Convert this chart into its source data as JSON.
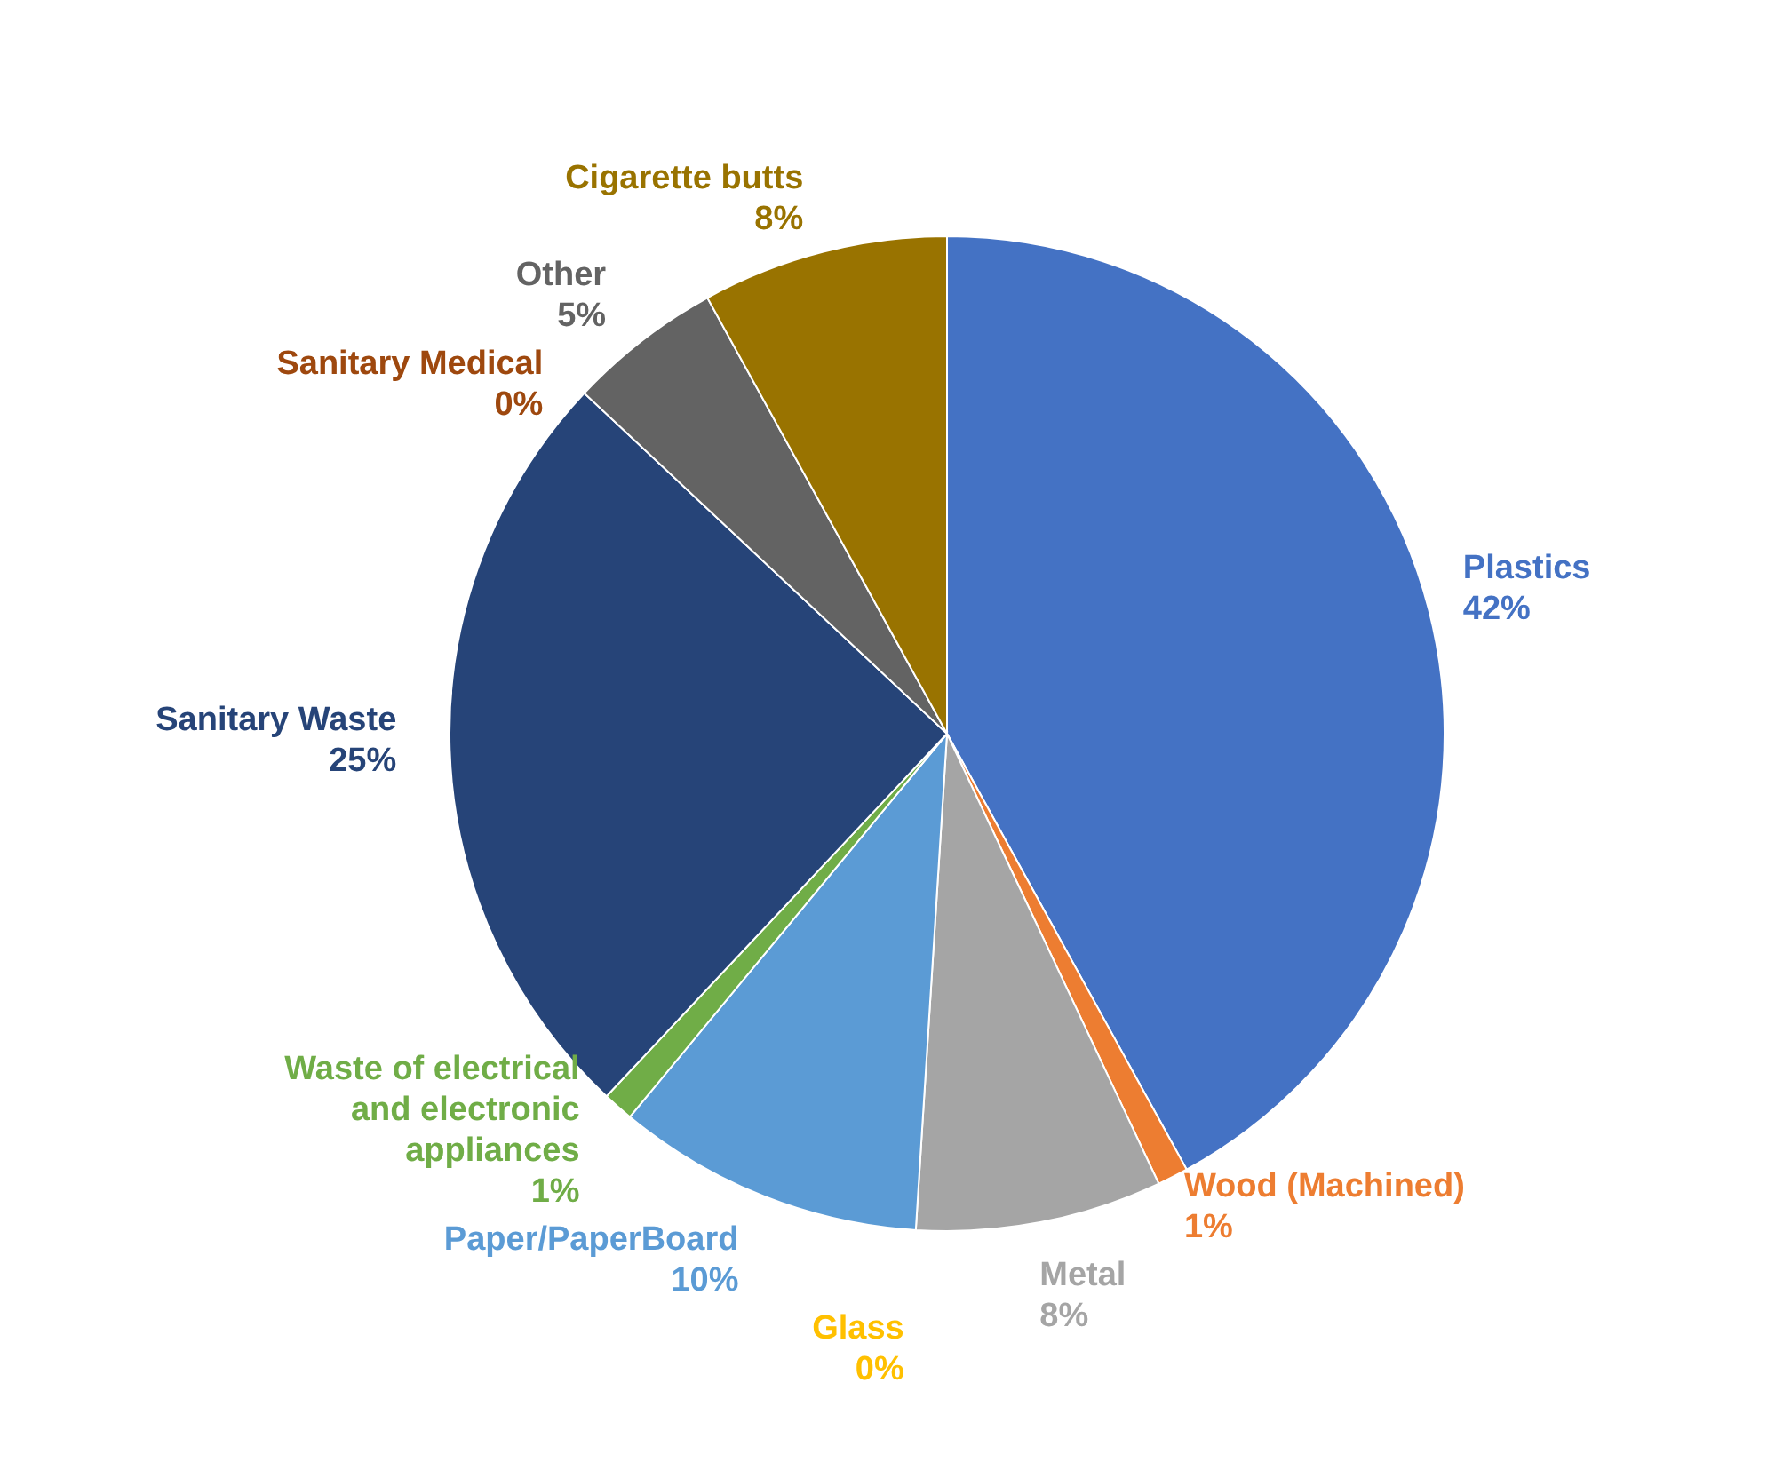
{
  "chart_data": {
    "type": "pie",
    "categories": [
      "Plastics",
      "Wood (Machined)",
      "Metal",
      "Glass",
      "Paper/PaperBoard",
      "Waste of electrical and electronic appliances",
      "Sanitary Waste",
      "Sanitary Medical",
      "Other",
      "Cigarette butts"
    ],
    "values": [
      42,
      1,
      8,
      0,
      10,
      1,
      25,
      0,
      5,
      8
    ],
    "value_labels": [
      "42%",
      "1%",
      "8%",
      "0%",
      "10%",
      "1%",
      "25%",
      "0%",
      "5%",
      "8%"
    ],
    "colors": [
      "#4472c4",
      "#ed7d31",
      "#a5a5a5",
      "#ffc000",
      "#5b9bd5",
      "#70ad47",
      "#264478",
      "#9e480e",
      "#636363",
      "#997300"
    ]
  }
}
